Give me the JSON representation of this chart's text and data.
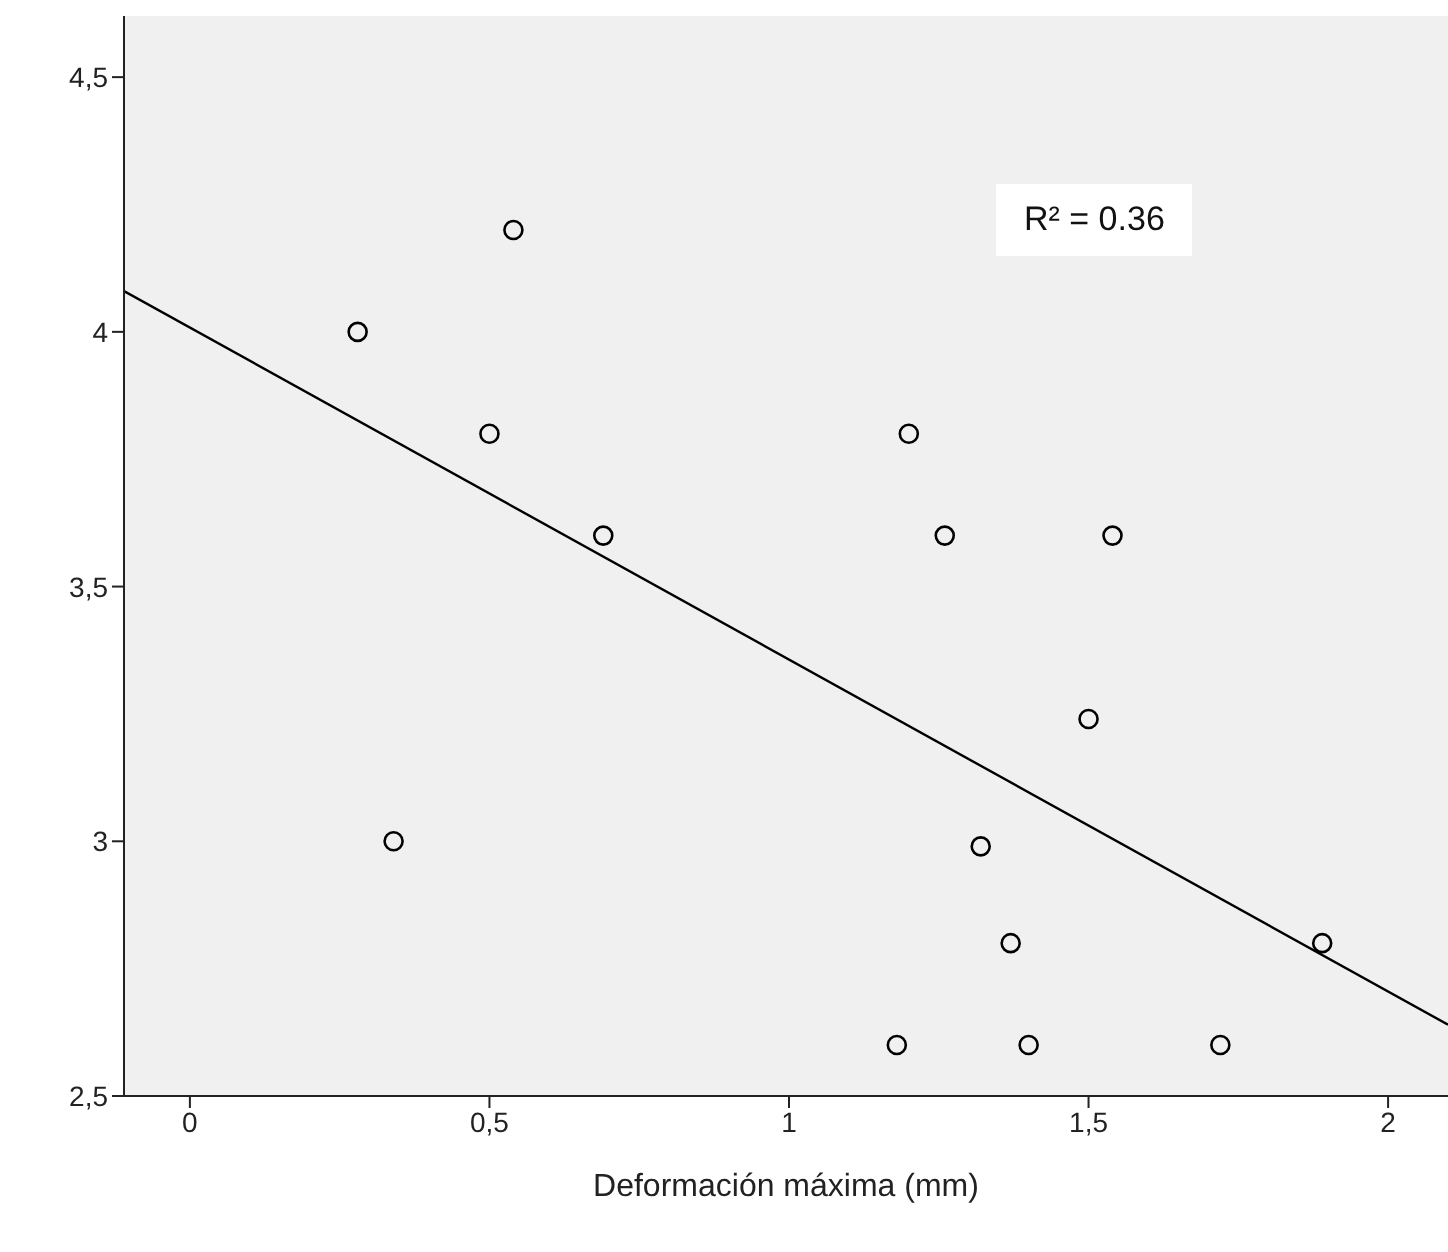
{
  "chart_data": {
    "type": "scatter",
    "xlabel": "Deformación máxima (mm)",
    "xlim": [
      -0.11,
      2.1
    ],
    "ylim": [
      2.5,
      4.62
    ],
    "xticks": [
      0,
      {
        "value": 0.5,
        "label": "0,5"
      },
      1,
      {
        "value": 1.5,
        "label": "1,5"
      },
      2
    ],
    "yticks": [
      {
        "value": 2.5,
        "label": "2,5"
      },
      3,
      {
        "value": 3.5,
        "label": "3,5"
      },
      4,
      {
        "value": 4.5,
        "label": "4,5"
      }
    ],
    "grid": false,
    "marker": "circle",
    "annotations": [
      "R² = 0.36"
    ],
    "series": [
      {
        "color": "#000000",
        "x": [
          0.28,
          0.54,
          0.5,
          0.69,
          0.34,
          1.2,
          1.26,
          1.54,
          1.5,
          1.32,
          1.37,
          1.18,
          1.4,
          1.72,
          1.89
        ],
        "values": [
          4.0,
          4.2,
          3.8,
          3.6,
          3.0,
          3.8,
          3.6,
          3.6,
          3.24,
          2.99,
          2.8,
          2.6,
          2.6,
          2.6,
          2.8
        ]
      },
      {
        "type": "line",
        "color": "#000000",
        "marker": "none",
        "x": [
          -0.11,
          2.1
        ],
        "values": [
          4.08,
          2.64
        ]
      }
    ]
  }
}
